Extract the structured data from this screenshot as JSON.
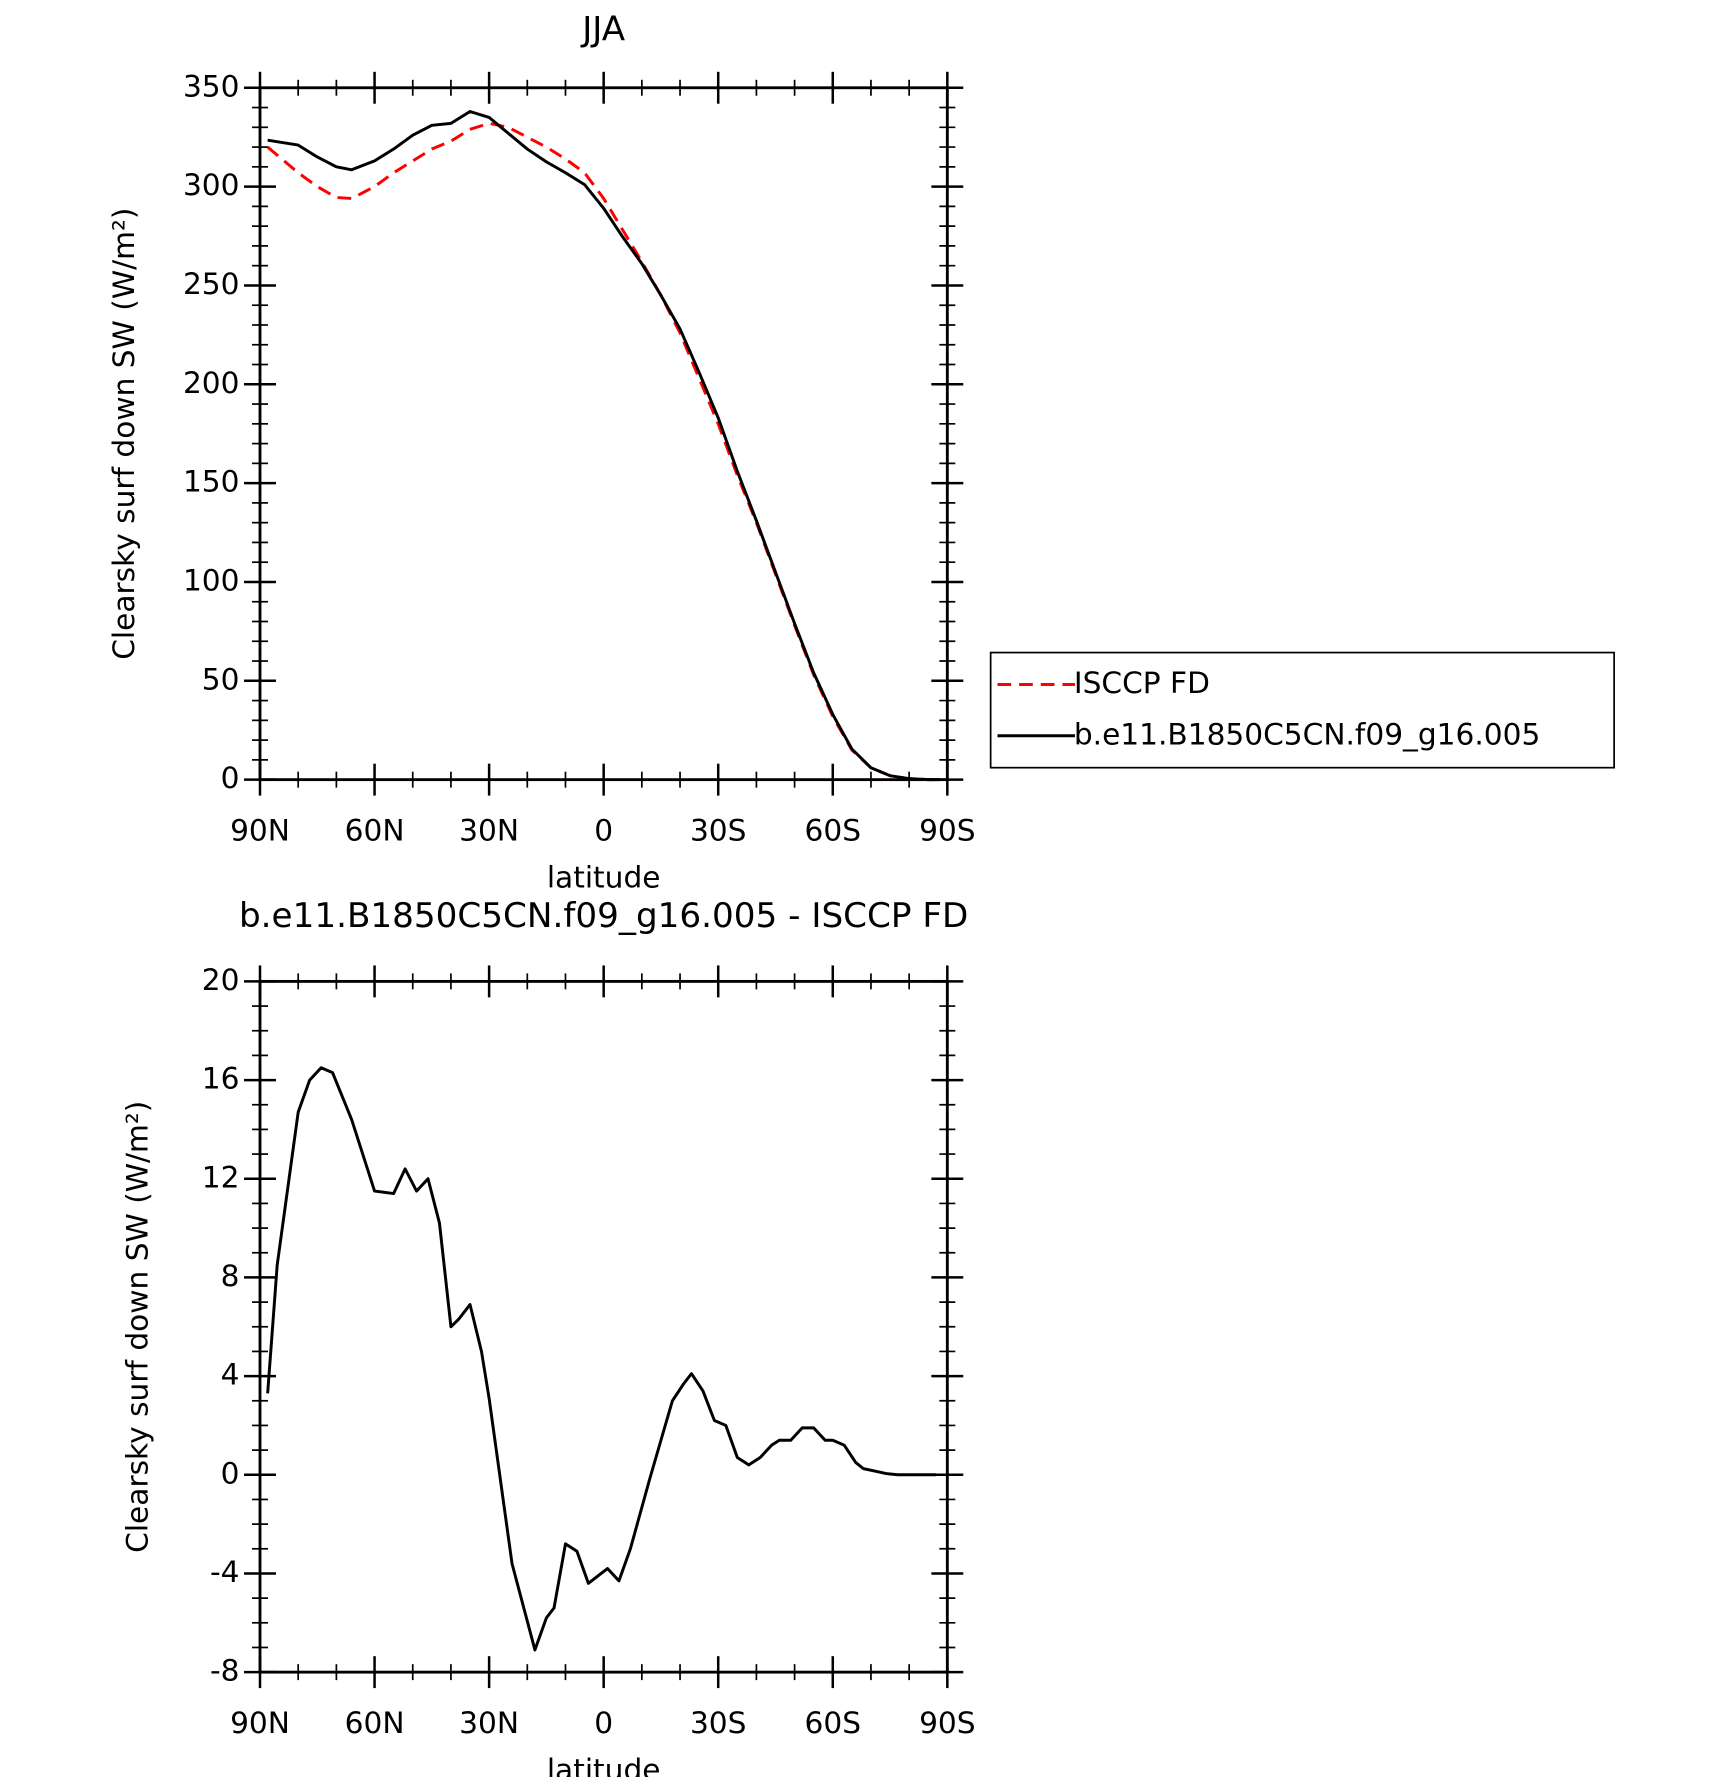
{
  "chart_data": [
    {
      "type": "line",
      "title": "JJA",
      "xlabel": "latitude",
      "ylabel": "Clearsky surf down SW (W/m²)",
      "x": [
        88,
        80,
        75,
        70,
        66,
        60,
        55,
        50,
        45,
        40,
        35,
        30,
        25,
        20,
        15,
        10,
        5,
        0,
        -5,
        -10,
        -15,
        -20,
        -25,
        -30,
        -35,
        -40,
        -45,
        -50,
        -55,
        -60,
        -65,
        -70,
        -75,
        -80,
        -85,
        -88
      ],
      "series": [
        {
          "name": "ISCCP FD",
          "color": "#ff0000",
          "dashed": true,
          "values": [
            320,
            307,
            300,
            294.5,
            294,
            300,
            307,
            313,
            319,
            323,
            329,
            332,
            330,
            325,
            320,
            314,
            307,
            294,
            278,
            262,
            245,
            226,
            203,
            180,
            154,
            130,
            104,
            78,
            53,
            32,
            15,
            6,
            2,
            0.5,
            0,
            0
          ]
        },
        {
          "name": "b.e11.B1850C5CN.f09_g16.005",
          "color": "#000000",
          "dashed": false,
          "values": [
            323.5,
            321,
            315,
            310,
            308.5,
            313,
            319,
            326,
            331,
            332,
            338,
            335,
            327,
            319,
            312.5,
            307,
            301,
            289,
            274.5,
            261,
            245,
            228,
            206,
            183,
            156,
            131,
            105,
            79,
            54,
            33,
            15.5,
            6,
            2,
            0.5,
            0,
            0
          ]
        }
      ],
      "xlim": [
        90,
        -90
      ],
      "xticks": [
        {
          "value": 90,
          "label": "90N"
        },
        {
          "value": 60,
          "label": "60N"
        },
        {
          "value": 30,
          "label": "30N"
        },
        0,
        {
          "value": -30,
          "label": "30S"
        },
        {
          "value": -60,
          "label": "60S"
        },
        {
          "value": -90,
          "label": "90S"
        }
      ],
      "ylim": [
        0,
        350
      ],
      "yticks": [
        0,
        50,
        100,
        150,
        200,
        250,
        300,
        350
      ],
      "legend": "right"
    },
    {
      "type": "line",
      "title": "b.e11.B1850C5CN.f09_g16.005 - ISCCP FD",
      "xlabel": "latitude",
      "ylabel": "Clearsky surf down SW (W/m²)",
      "x": [
        88,
        85.5,
        80,
        77,
        74,
        71,
        66,
        60,
        55,
        52,
        49,
        46,
        43,
        40,
        38,
        35,
        32,
        30,
        24,
        18,
        15,
        13,
        10,
        7,
        4,
        -1,
        -4,
        -7,
        -12,
        -18,
        -21,
        -23,
        -26,
        -29,
        -32,
        -35,
        -38,
        -41,
        -44,
        -46,
        -49,
        -52,
        -55,
        -58,
        -60,
        -63,
        -66,
        -68,
        -71,
        -74,
        -77,
        -82,
        -87
      ],
      "series": [
        {
          "color": "#000000",
          "dashed": false,
          "values": [
            3.3,
            8.5,
            14.7,
            16,
            16.5,
            16.3,
            14.4,
            11.5,
            11.4,
            12.4,
            11.5,
            12,
            10.2,
            6,
            6.3,
            6.9,
            5,
            3.1,
            -3.6,
            -7.1,
            -5.8,
            -5.4,
            -2.8,
            -3.1,
            -4.4,
            -3.8,
            -4.3,
            -3,
            -0.2,
            3,
            3.7,
            4.1,
            3.4,
            2.2,
            2,
            0.7,
            0.4,
            0.7,
            1.2,
            1.4,
            1.4,
            1.9,
            1.9,
            1.4,
            1.4,
            1.2,
            0.5,
            0.25,
            0.15,
            0.05,
            0,
            0,
            0
          ]
        }
      ],
      "xlim": [
        90,
        -90
      ],
      "xticks": [
        {
          "value": 90,
          "label": "90N"
        },
        {
          "value": 60,
          "label": "60N"
        },
        {
          "value": 30,
          "label": "30N"
        },
        0,
        {
          "value": -30,
          "label": "30S"
        },
        {
          "value": -60,
          "label": "60S"
        },
        {
          "value": -90,
          "label": "90S"
        }
      ],
      "ylim": [
        -8,
        20
      ],
      "yticks": [
        -8,
        -4,
        0,
        4,
        8,
        12,
        16,
        20
      ]
    }
  ]
}
